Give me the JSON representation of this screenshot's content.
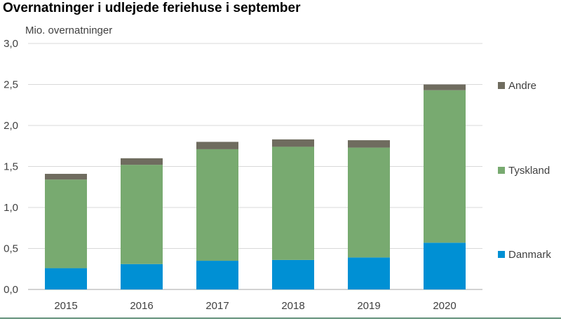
{
  "chart_data": {
    "type": "bar",
    "stacked": true,
    "title": "Overnatninger i udlejede feriehuse i september",
    "ylabel": "Mio. overnatninger",
    "xlabel": "",
    "categories": [
      "2015",
      "2016",
      "2017",
      "2018",
      "2019",
      "2020"
    ],
    "ylim": [
      0,
      3.0
    ],
    "yticks": [
      "0,0",
      "0,5",
      "1,0",
      "1,5",
      "2,0",
      "2,5",
      "3,0"
    ],
    "grid": true,
    "legend_position": "right",
    "series": [
      {
        "name": "Danmark",
        "color": "#0090d4",
        "values": [
          0.26,
          0.31,
          0.35,
          0.36,
          0.39,
          0.57
        ]
      },
      {
        "name": "Tyskland",
        "color": "#78aa70",
        "values": [
          1.08,
          1.21,
          1.36,
          1.38,
          1.34,
          1.86
        ]
      },
      {
        "name": "Andre",
        "color": "#6f6c5f",
        "values": [
          0.07,
          0.08,
          0.09,
          0.09,
          0.09,
          0.07
        ]
      }
    ]
  }
}
